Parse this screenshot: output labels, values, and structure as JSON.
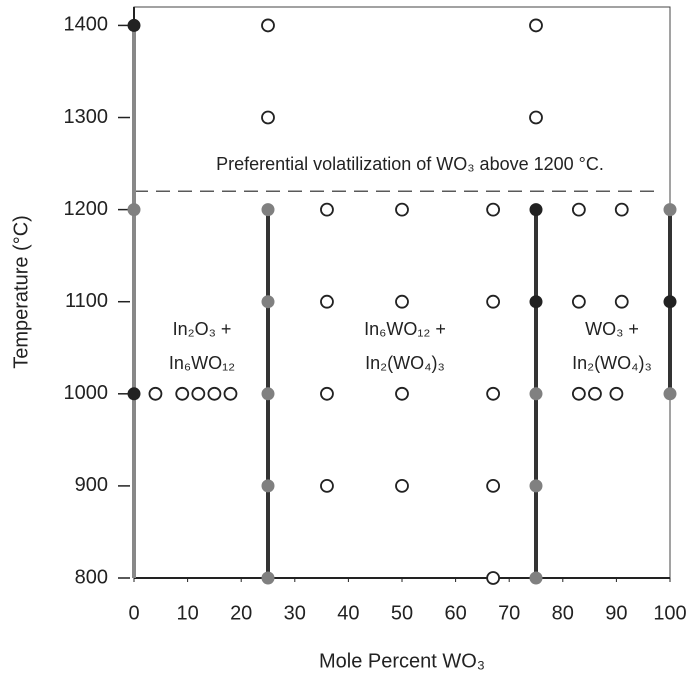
{
  "chart_data": {
    "type": "scatter",
    "xlabel": "Mole Percent WO₃",
    "ylabel": "Temperature (°C)",
    "xlim": [
      0,
      100
    ],
    "ylim": [
      800,
      1420
    ],
    "xticks": [
      0,
      10,
      20,
      30,
      40,
      50,
      60,
      70,
      80,
      90,
      100
    ],
    "yticks": [
      800,
      900,
      1000,
      1100,
      1200,
      1300,
      1400
    ],
    "series": [
      {
        "marker": "open",
        "color": "#222222",
        "x": [
          25,
          75,
          25,
          75,
          36,
          50,
          67,
          83,
          91,
          36,
          50,
          67,
          83,
          91,
          4,
          9,
          12,
          15,
          18,
          36,
          50,
          67,
          83,
          86,
          90,
          36,
          50,
          67,
          67
        ],
        "values": [
          1400,
          1400,
          1300,
          1300,
          1200,
          1200,
          1200,
          1200,
          1200,
          1100,
          1100,
          1100,
          1100,
          1100,
          1000,
          1000,
          1000,
          1000,
          1000,
          1000,
          1000,
          1000,
          1000,
          1000,
          1000,
          900,
          900,
          900,
          800
        ]
      },
      {
        "marker": "filled",
        "color": "#808080",
        "x": [
          0,
          25,
          25,
          25,
          25,
          25,
          75,
          75,
          75,
          100,
          100
        ],
        "values": [
          1200,
          1200,
          1100,
          1000,
          900,
          800,
          1000,
          900,
          800,
          1200,
          1000
        ]
      },
      {
        "marker": "filled",
        "color": "#222222",
        "x": [
          0,
          0,
          75,
          75,
          100
        ],
        "values": [
          1400,
          1000,
          1200,
          1100,
          1100
        ]
      }
    ],
    "boundaries": [
      {
        "x": 0,
        "y": [
          800,
          1400
        ],
        "color": "#888888"
      },
      {
        "x": 25,
        "y": [
          800,
          1200
        ],
        "color": "#333333"
      },
      {
        "x": 75,
        "y": [
          800,
          1200
        ],
        "color": "#333333"
      },
      {
        "x": 100,
        "y": [
          1000,
          1200
        ],
        "color": "#333333"
      }
    ],
    "dashed_line": 1220,
    "annotations": [
      {
        "lines": [
          "Preferential volatilization of WO₃ above 1200 °C."
        ]
      },
      {
        "lines": [
          "In₂O₃ +",
          "In₆WO₁₂"
        ]
      },
      {
        "lines": [
          "In₆WO₁₂ +",
          "In₂(WO₄)₃"
        ]
      },
      {
        "lines": [
          "WO₃ +",
          "In₂(WO₄)₃"
        ]
      }
    ]
  }
}
